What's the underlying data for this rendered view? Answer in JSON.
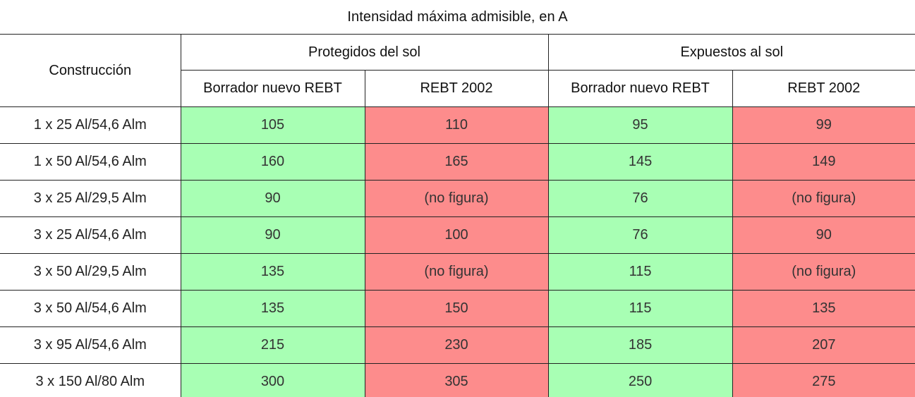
{
  "title": "Intensidad máxima admisible, en A",
  "headers": {
    "construction": "Construcción",
    "protected": "Protegidos del sol",
    "exposed": "Expuestos al sol",
    "draft": "Borrador nuevo REBT",
    "rebt2002": "REBT 2002"
  },
  "rows": [
    {
      "label": "1 x 25 Al/54,6 Alm",
      "values": [
        "105",
        "110",
        "95",
        "99"
      ]
    },
    {
      "label": "1 x 50 Al/54,6 Alm",
      "values": [
        "160",
        "165",
        "145",
        "149"
      ]
    },
    {
      "label": "3 x 25 Al/29,5 Alm",
      "values": [
        "90",
        "(no figura)",
        "76",
        "(no figura)"
      ]
    },
    {
      "label": "3 x 25 Al/54,6 Alm",
      "values": [
        "90",
        "100",
        "76",
        "90"
      ]
    },
    {
      "label": "3 x 50 Al/29,5 Alm",
      "values": [
        "135",
        "(no figura)",
        "115",
        "(no figura)"
      ]
    },
    {
      "label": "3 x 50 Al/54,6 Alm",
      "values": [
        "135",
        "150",
        "115",
        "135"
      ]
    },
    {
      "label": "3 x 95 Al/54,6 Alm",
      "values": [
        "215",
        "230",
        "185",
        "207"
      ]
    },
    {
      "label": "3 x 150 Al/80 Alm",
      "values": [
        "300",
        "305",
        "250",
        "275"
      ]
    }
  ],
  "colors": {
    "draft_cell": "#a8ffb4",
    "rebt2002_cell": "#fd8c8c"
  }
}
